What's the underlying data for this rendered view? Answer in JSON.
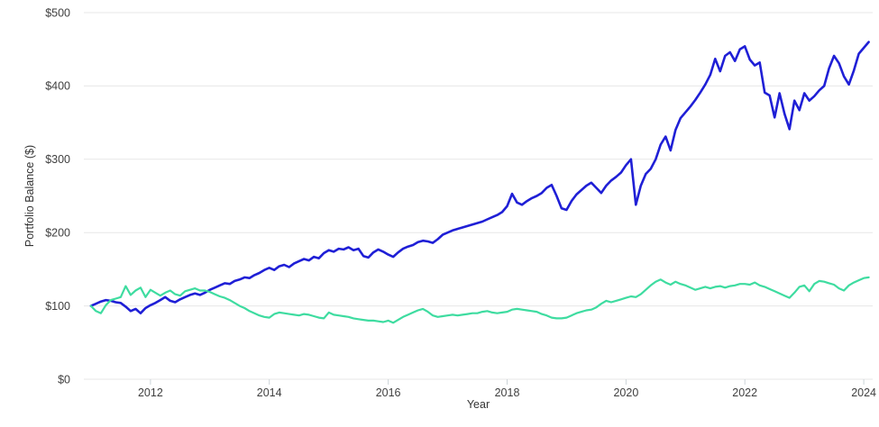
{
  "chart_data": {
    "type": "line",
    "title": "",
    "xlabel": "Year",
    "ylabel": "Portfolio Balance ($)",
    "grid": true,
    "legend": "none",
    "xlim": [
      2010.88,
      2024.15
    ],
    "ylim": [
      0,
      500
    ],
    "x_ticks": [
      2012,
      2014,
      2016,
      2018,
      2020,
      2022,
      2024
    ],
    "x_tick_labels": [
      "2012",
      "2014",
      "2016",
      "2018",
      "2020",
      "2022",
      "2024"
    ],
    "y_ticks": [
      0,
      100,
      200,
      300,
      400,
      500
    ],
    "y_tick_labels": [
      "$0",
      "$100",
      "$200",
      "$300",
      "$400",
      "$500"
    ],
    "x_start": 2011.0,
    "x_step": 0.0833333,
    "series": [
      {
        "name": "blue-series",
        "color": "#1f1fd6",
        "stroke_width": 2.6,
        "values": [
          100,
          103,
          106,
          108,
          107,
          105,
          104,
          99,
          93,
          96,
          90,
          97,
          101,
          104,
          108,
          112,
          107,
          105,
          109,
          112,
          115,
          117,
          115,
          118,
          122,
          125,
          128,
          131,
          130,
          134,
          136,
          139,
          138,
          142,
          145,
          149,
          152,
          149,
          154,
          156,
          153,
          158,
          161,
          164,
          162,
          167,
          165,
          172,
          176,
          174,
          178,
          177,
          180,
          176,
          178,
          168,
          166,
          173,
          177,
          174,
          170,
          167,
          173,
          178,
          181,
          183,
          187,
          189,
          188,
          186,
          191,
          197,
          200,
          203,
          205,
          207,
          209,
          211,
          213,
          215,
          218,
          221,
          224,
          228,
          236,
          253,
          241,
          238,
          243,
          247,
          250,
          254,
          261,
          265,
          250,
          233,
          231,
          243,
          252,
          258,
          264,
          268,
          261,
          254,
          264,
          271,
          276,
          282,
          292,
          300,
          238,
          264,
          280,
          287,
          300,
          320,
          331,
          312,
          340,
          356,
          364,
          372,
          381,
          391,
          402,
          415,
          437,
          420,
          441,
          446,
          434,
          450,
          454,
          436,
          428,
          432,
          391,
          387,
          357,
          390,
          362,
          341,
          380,
          367,
          390,
          380,
          386,
          394,
          400,
          424,
          441,
          431,
          413,
          402,
          421,
          444,
          452,
          460
        ]
      },
      {
        "name": "teal-series",
        "color": "#3edca0",
        "stroke_width": 2.2,
        "values": [
          100,
          93,
          90,
          101,
          108,
          110,
          112,
          127,
          115,
          121,
          125,
          112,
          122,
          118,
          114,
          118,
          121,
          116,
          114,
          120,
          122,
          124,
          121,
          121,
          119,
          116,
          113,
          111,
          108,
          104,
          100,
          97,
          93,
          90,
          87,
          85,
          84,
          89,
          91,
          90,
          89,
          88,
          87,
          89,
          88,
          86,
          84,
          83,
          91,
          88,
          87,
          86,
          85,
          83,
          82,
          81,
          80,
          80,
          79,
          78,
          80,
          77,
          81,
          85,
          88,
          91,
          94,
          96,
          92,
          87,
          85,
          86,
          87,
          88,
          87,
          88,
          89,
          90,
          90,
          92,
          93,
          91,
          90,
          91,
          92,
          95,
          96,
          95,
          94,
          93,
          92,
          89,
          87,
          84,
          83,
          83,
          84,
          87,
          90,
          92,
          94,
          95,
          98,
          103,
          107,
          105,
          107,
          109,
          111,
          113,
          112,
          116,
          122,
          128,
          133,
          136,
          132,
          129,
          133,
          130,
          128,
          125,
          122,
          124,
          126,
          124,
          126,
          127,
          125,
          127,
          128,
          130,
          130,
          129,
          132,
          128,
          126,
          123,
          120,
          117,
          114,
          111,
          118,
          126,
          128,
          120,
          130,
          134,
          133,
          131,
          129,
          124,
          121,
          128,
          132,
          135,
          138,
          139
        ]
      }
    ]
  },
  "colors": {
    "background": "#ffffff",
    "gridline": "#e7e7e7",
    "tick_mark": "#ccd4d8",
    "text": "#3f3f3f"
  }
}
